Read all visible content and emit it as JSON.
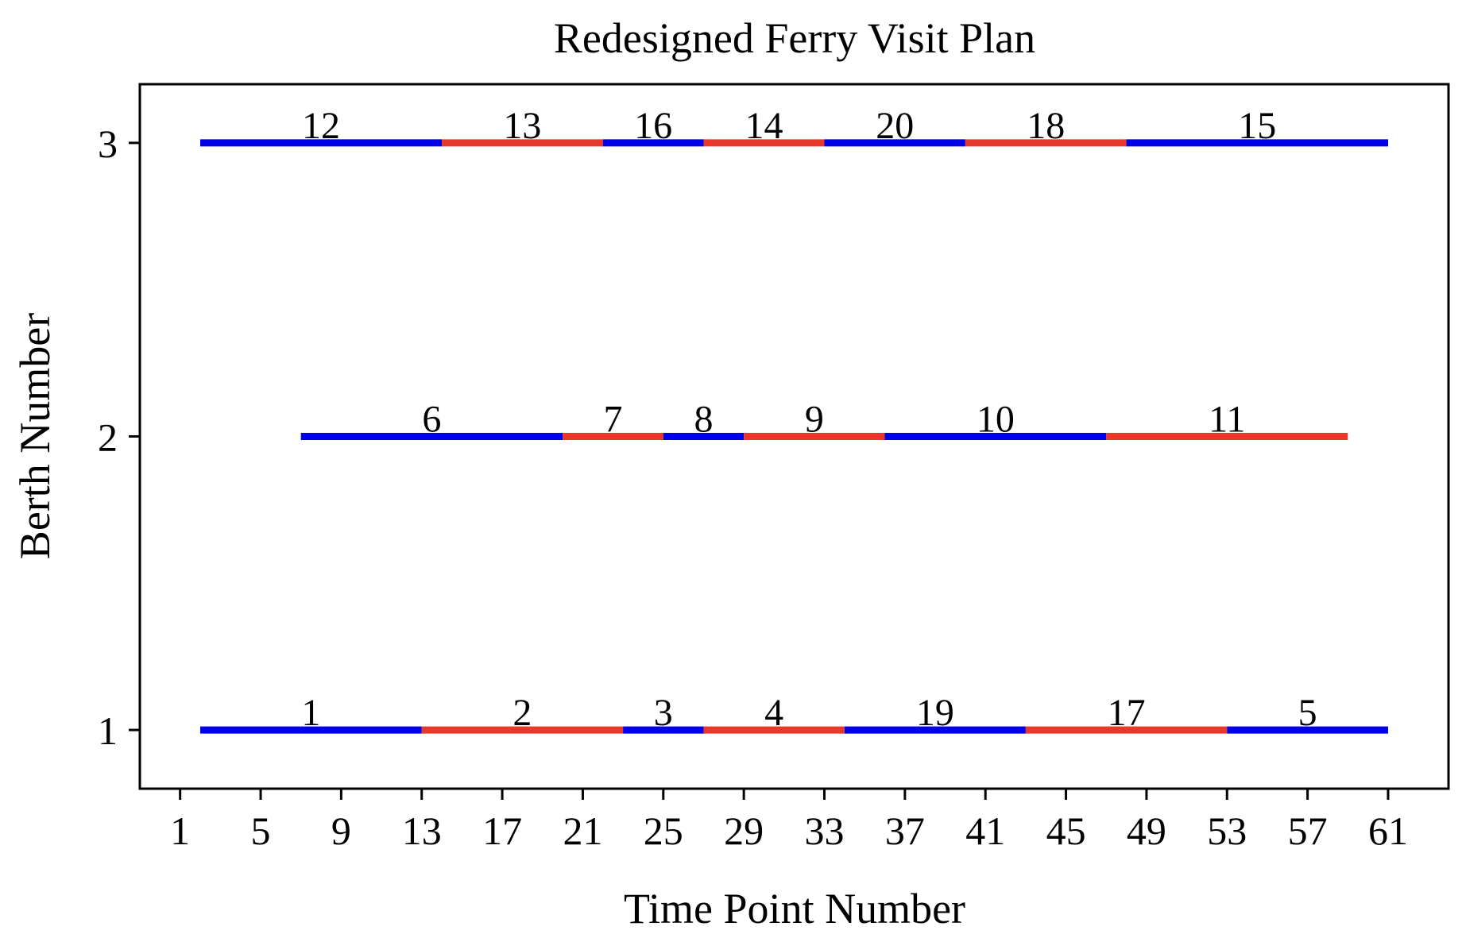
{
  "chart_data": {
    "type": "gantt",
    "title": "Redesigned Ferry Visit Plan",
    "xlabel": "Time Point Number",
    "ylabel": "Berth Number",
    "xlim": [
      -1,
      64
    ],
    "ylim": [
      0.8,
      3.2
    ],
    "xticks": [
      1,
      5,
      9,
      13,
      17,
      21,
      25,
      29,
      33,
      37,
      41,
      45,
      49,
      53,
      57,
      61
    ],
    "yticks": [
      1,
      2,
      3
    ],
    "grid": false,
    "colors": {
      "blue": "#0000e6",
      "red": "#e8382c"
    },
    "segments": [
      {
        "label": "12",
        "berth": 3,
        "start": 2,
        "end": 14,
        "color": "blue"
      },
      {
        "label": "13",
        "berth": 3,
        "start": 14,
        "end": 22,
        "color": "red"
      },
      {
        "label": "16",
        "berth": 3,
        "start": 22,
        "end": 27,
        "color": "blue"
      },
      {
        "label": "14",
        "berth": 3,
        "start": 27,
        "end": 33,
        "color": "red"
      },
      {
        "label": "20",
        "berth": 3,
        "start": 33,
        "end": 40,
        "color": "blue"
      },
      {
        "label": "18",
        "berth": 3,
        "start": 40,
        "end": 48,
        "color": "red"
      },
      {
        "label": "15",
        "berth": 3,
        "start": 48,
        "end": 61,
        "color": "blue"
      },
      {
        "label": "6",
        "berth": 2,
        "start": 7,
        "end": 20,
        "color": "blue"
      },
      {
        "label": "7",
        "berth": 2,
        "start": 20,
        "end": 25,
        "color": "red"
      },
      {
        "label": "8",
        "berth": 2,
        "start": 25,
        "end": 29,
        "color": "blue"
      },
      {
        "label": "9",
        "berth": 2,
        "start": 29,
        "end": 36,
        "color": "red"
      },
      {
        "label": "10",
        "berth": 2,
        "start": 36,
        "end": 47,
        "color": "blue"
      },
      {
        "label": "11",
        "berth": 2,
        "start": 47,
        "end": 59,
        "color": "red"
      },
      {
        "label": "1",
        "berth": 1,
        "start": 2,
        "end": 13,
        "color": "blue"
      },
      {
        "label": "2",
        "berth": 1,
        "start": 13,
        "end": 23,
        "color": "red"
      },
      {
        "label": "3",
        "berth": 1,
        "start": 23,
        "end": 27,
        "color": "blue"
      },
      {
        "label": "4",
        "berth": 1,
        "start": 27,
        "end": 34,
        "color": "red"
      },
      {
        "label": "19",
        "berth": 1,
        "start": 34,
        "end": 43,
        "color": "blue"
      },
      {
        "label": "17",
        "berth": 1,
        "start": 43,
        "end": 53,
        "color": "red"
      },
      {
        "label": "5",
        "berth": 1,
        "start": 53,
        "end": 61,
        "color": "blue"
      }
    ]
  }
}
